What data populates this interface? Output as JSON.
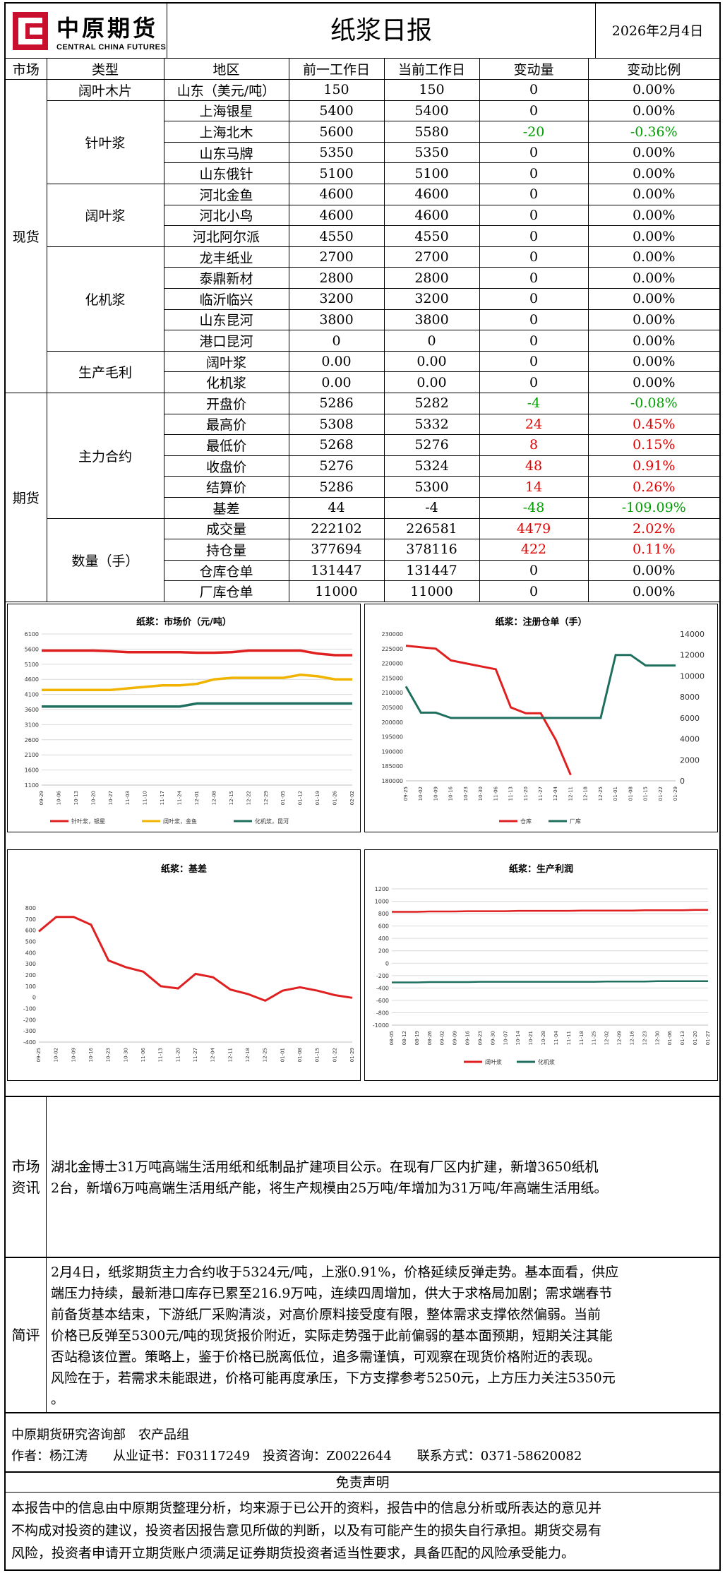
{
  "header": {
    "logo_cn": "中原期货",
    "logo_en": "CENTRAL CHINA FUTURES",
    "title": "纸浆日报",
    "date": "2026年2月4日"
  },
  "table": {
    "headers": [
      "市场",
      "类型",
      "地区",
      "前一工作日",
      "当前工作日",
      "变动量",
      "变动比例"
    ],
    "spot_label": "现货",
    "futures_label": "期货",
    "groups": {
      "g1": "阔叶木片",
      "g2": "针叶浆",
      "g3": "阔叶浆",
      "g4": "化机浆",
      "g5": "生产毛利",
      "g6": "主力合约",
      "g7": "数量（手）"
    },
    "rows": [
      {
        "region": "山东（美元/吨）",
        "prev": "150",
        "curr": "150",
        "chg": "0",
        "pct": "0.00%",
        "color": ""
      },
      {
        "region": "上海银星",
        "prev": "5400",
        "curr": "5400",
        "chg": "0",
        "pct": "0.00%",
        "color": ""
      },
      {
        "region": "上海北木",
        "prev": "5600",
        "curr": "5580",
        "chg": "-20",
        "pct": "-0.36%",
        "color": "green"
      },
      {
        "region": "山东马牌",
        "prev": "5350",
        "curr": "5350",
        "chg": "0",
        "pct": "0.00%",
        "color": ""
      },
      {
        "region": "山东俄针",
        "prev": "5100",
        "curr": "5100",
        "chg": "0",
        "pct": "0.00%",
        "color": ""
      },
      {
        "region": "河北金鱼",
        "prev": "4600",
        "curr": "4600",
        "chg": "0",
        "pct": "0.00%",
        "color": ""
      },
      {
        "region": "河北小鸟",
        "prev": "4600",
        "curr": "4600",
        "chg": "0",
        "pct": "0.00%",
        "color": ""
      },
      {
        "region": "河北阿尔派",
        "prev": "4550",
        "curr": "4550",
        "chg": "0",
        "pct": "0.00%",
        "color": ""
      },
      {
        "region": "龙丰纸业",
        "prev": "2700",
        "curr": "2700",
        "chg": "0",
        "pct": "0.00%",
        "color": ""
      },
      {
        "region": "泰鼎新材",
        "prev": "2800",
        "curr": "2800",
        "chg": "0",
        "pct": "0.00%",
        "color": ""
      },
      {
        "region": "临沂临兴",
        "prev": "3200",
        "curr": "3200",
        "chg": "0",
        "pct": "0.00%",
        "color": ""
      },
      {
        "region": "山东昆河",
        "prev": "3800",
        "curr": "3800",
        "chg": "0",
        "pct": "0.00%",
        "color": ""
      },
      {
        "region": "港口昆河",
        "prev": "0",
        "curr": "0",
        "chg": "0",
        "pct": "0.00%",
        "color": ""
      },
      {
        "region": "阔叶浆",
        "prev": "0.00",
        "curr": "0.00",
        "chg": "0",
        "pct": "0.00%",
        "color": ""
      },
      {
        "region": "化机浆",
        "prev": "0.00",
        "curr": "0.00",
        "chg": "0",
        "pct": "0.00%",
        "color": ""
      },
      {
        "region": "开盘价",
        "prev": "5286",
        "curr": "5282",
        "chg": "-4",
        "pct": "-0.08%",
        "color": "green"
      },
      {
        "region": "最高价",
        "prev": "5308",
        "curr": "5332",
        "chg": "24",
        "pct": "0.45%",
        "color": "red"
      },
      {
        "region": "最低价",
        "prev": "5268",
        "curr": "5276",
        "chg": "8",
        "pct": "0.15%",
        "color": "red"
      },
      {
        "region": "收盘价",
        "prev": "5276",
        "curr": "5324",
        "chg": "48",
        "pct": "0.91%",
        "color": "red"
      },
      {
        "region": "结算价",
        "prev": "5286",
        "curr": "5300",
        "chg": "14",
        "pct": "0.26%",
        "color": "red"
      },
      {
        "region": "基差",
        "prev": "44",
        "curr": "-4",
        "chg": "-48",
        "pct": "-109.09%",
        "color": "green"
      },
      {
        "region": "成交量",
        "prev": "222102",
        "curr": "226581",
        "chg": "4479",
        "pct": "2.02%",
        "color": "red"
      },
      {
        "region": "持仓量",
        "prev": "377694",
        "curr": "378116",
        "chg": "422",
        "pct": "0.11%",
        "color": "red"
      },
      {
        "region": "仓库仓单",
        "prev": "131447",
        "curr": "131447",
        "chg": "0",
        "pct": "0.00%",
        "color": ""
      },
      {
        "region": "厂库仓单",
        "prev": "11000",
        "curr": "11000",
        "chg": "0",
        "pct": "0.00%",
        "color": ""
      }
    ]
  },
  "chart_data": [
    {
      "type": "line",
      "title": "纸浆：市场价（元/吨）",
      "ylim": [
        1100,
        6100
      ],
      "yticks": [
        "6100",
        "5600",
        "5100",
        "4600",
        "4100",
        "3600",
        "3100",
        "2600",
        "2100",
        "1600",
        "1100"
      ],
      "xticks": [
        "09-29",
        "10-06",
        "10-13",
        "10-20",
        "10-27",
        "11-03",
        "11-10",
        "11-17",
        "11-24",
        "12-01",
        "12-08",
        "12-15",
        "12-22",
        "12-29",
        "01-05",
        "01-12",
        "01-19",
        "01-26",
        "02-02"
      ],
      "series": [
        {
          "name": "针叶浆，银星",
          "color": "#e02020",
          "values": [
            5550,
            5550,
            5550,
            5550,
            5530,
            5500,
            5500,
            5500,
            5500,
            5480,
            5480,
            5500,
            5550,
            5550,
            5550,
            5550,
            5450,
            5400,
            5400
          ]
        },
        {
          "name": "阔叶浆，金鱼",
          "color": "#f0b400",
          "values": [
            4250,
            4250,
            4250,
            4250,
            4250,
            4300,
            4350,
            4400,
            4400,
            4450,
            4600,
            4650,
            4650,
            4650,
            4650,
            4750,
            4700,
            4600,
            4600
          ]
        },
        {
          "name": "化机浆，昆河",
          "color": "#1f6f5f",
          "values": [
            3700,
            3700,
            3700,
            3700,
            3700,
            3700,
            3700,
            3700,
            3700,
            3800,
            3800,
            3800,
            3800,
            3800,
            3800,
            3800,
            3800,
            3800,
            3800
          ]
        }
      ]
    },
    {
      "type": "line",
      "title": "纸浆：注册仓单（手）",
      "ylim_left": [
        180000,
        230000
      ],
      "ylim_right": [
        0,
        14000
      ],
      "yticks_left": [
        "230000",
        "225000",
        "220000",
        "215000",
        "210000",
        "205000",
        "200000",
        "195000",
        "190000",
        "185000",
        "180000"
      ],
      "yticks_right": [
        "14000",
        "12000",
        "10000",
        "8000",
        "6000",
        "4000",
        "2000",
        "0"
      ],
      "xticks": [
        "09-25",
        "10-02",
        "10-09",
        "10-16",
        "10-23",
        "10-30",
        "11-06",
        "11-13",
        "11-20",
        "11-27",
        "12-04",
        "12-11",
        "12-18",
        "12-25",
        "01-01",
        "01-08",
        "01-15",
        "01-22",
        "01-29"
      ],
      "series": [
        {
          "name": "仓库",
          "color": "#e02020",
          "values": [
            226000,
            225500,
            225000,
            221000,
            220000,
            219000,
            218000,
            205000,
            203000,
            203000,
            194000,
            182000,
            null,
            null,
            null,
            null,
            null,
            null,
            null
          ]
        },
        {
          "name": "厂库",
          "color": "#1f6f5f",
          "values": [
            9000,
            6500,
            6500,
            6000,
            6000,
            6000,
            6000,
            6000,
            6000,
            6000,
            6000,
            6000,
            6000,
            6000,
            12000,
            12000,
            11000,
            11000,
            11000
          ]
        }
      ]
    },
    {
      "type": "line",
      "title": "纸浆：基差",
      "ylim": [
        -400,
        800
      ],
      "yticks": [
        "800",
        "700",
        "600",
        "500",
        "400",
        "300",
        "200",
        "100",
        "0",
        "-100",
        "-200",
        "-300",
        "-400"
      ],
      "xticks": [
        "09-25",
        "10-02",
        "10-09",
        "10-16",
        "10-23",
        "10-30",
        "11-06",
        "11-13",
        "11-20",
        "11-27",
        "12-04",
        "12-11",
        "12-18",
        "12-25",
        "01-01",
        "01-08",
        "01-15",
        "01-22",
        "01-29"
      ],
      "series": [
        {
          "name": "基差",
          "color": "#e02020",
          "values": [
            590,
            720,
            720,
            650,
            330,
            270,
            230,
            100,
            80,
            210,
            180,
            70,
            30,
            -30,
            60,
            90,
            60,
            20,
            -4
          ]
        }
      ]
    },
    {
      "type": "line",
      "title": "纸浆：生产利润",
      "ylim": [
        -1000,
        1200
      ],
      "yticks": [
        "1200",
        "1000",
        "800",
        "600",
        "400",
        "200",
        "0",
        "-200",
        "-400",
        "-600",
        "-800",
        "-1000"
      ],
      "xticks": [
        "08-05",
        "08-12",
        "08-19",
        "08-26",
        "09-02",
        "09-09",
        "09-16",
        "09-23",
        "09-30",
        "10-07",
        "10-14",
        "10-21",
        "10-28",
        "11-04",
        "11-11",
        "11-18",
        "11-25",
        "12-02",
        "12-09",
        "12-16",
        "12-23",
        "12-30",
        "01-06",
        "01-13",
        "01-20",
        "01-27"
      ],
      "series": [
        {
          "name": "阔叶浆",
          "color": "#e02020",
          "values": [
            830,
            830,
            830,
            835,
            835,
            835,
            840,
            840,
            840,
            840,
            845,
            845,
            845,
            845,
            845,
            850,
            850,
            850,
            850,
            850,
            855,
            855,
            855,
            855,
            860,
            860
          ]
        },
        {
          "name": "化机浆",
          "color": "#1f6f5f",
          "values": [
            -310,
            -310,
            -310,
            -305,
            -305,
            -305,
            -305,
            -300,
            -300,
            -300,
            -300,
            -300,
            -300,
            -300,
            -300,
            -300,
            -300,
            -295,
            -295,
            -295,
            -295,
            -290,
            -290,
            -290,
            -290,
            -290
          ]
        }
      ]
    }
  ],
  "news": {
    "label": "市场资讯",
    "lines": [
      "湖北金博士31万吨高端生活用纸和纸制品扩建项目公示。在现有厂区内扩建，新增3650纸机",
      "2台，新增6万吨高端生活用纸产能，将生产规模由25万吨/年增加为31万吨/年高端生活用纸。"
    ]
  },
  "review": {
    "label": "简评",
    "lines": [
      "2月4日，纸浆期货主力合约收于5324元/吨，上涨0.91%，价格延续反弹走势。基本面看，供应",
      "端压力持续，最新港口库存已累至216.9万吨，连续四周增加，供大于求格局加剧；需求端春节",
      "前备货基本结束，下游纸厂采购清淡，对高价原料接受度有限，整体需求支撑依然偏弱。当前",
      "价格已反弹至5300元/吨的现货报价附近，实际走势强于此前偏弱的基本面预期，短期关注其能",
      "否站稳该位置。策略上，鉴于价格已脱离低位，追多需谨慎，可观察在现货价格附近的表现。",
      "风险在于，若需求未能跟进，价格可能再度承压，下方支撑参考5250元，上方压力关注5350元",
      "。"
    ]
  },
  "footer": {
    "dept": "中原期货研究咨询部　农产品组",
    "author": "作者：杨江涛　　从业证书：F03117249　投资咨询：Z0022644　　联系方式：0371-58620082",
    "disclaimer_title": "免责声明",
    "disclaimer_lines": [
      "本报告中的信息由中原期货整理分析，均来源于已公开的资料，报告中的信息分析或所表达的意见并",
      "不构成对投资的建议，投资者因报告意见所做的判断，以及有可能产生的损失自行承担。期货交易有",
      "风险，投资者申请开立期货账户须满足证券期货投资者适当性要求，具备匹配的风险承受能力。"
    ]
  }
}
